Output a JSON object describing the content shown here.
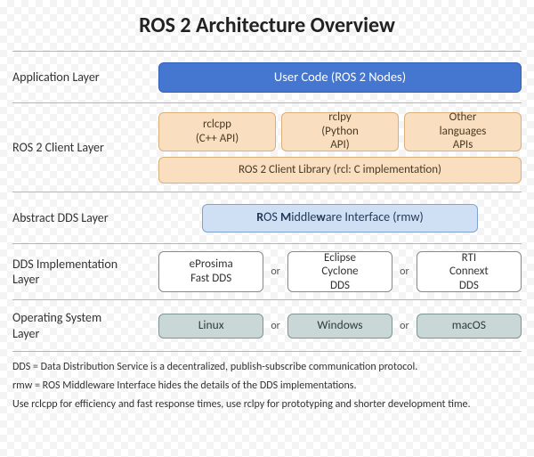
{
  "title": "ROS 2 Architecture Overview",
  "layers": {
    "app": {
      "label": "Application Layer",
      "user_code": "User Code (ROS 2 Nodes)"
    },
    "client": {
      "label": "ROS 2 Client Layer",
      "rclcpp_l1": "rclcpp",
      "rclcpp_l2": "(C++ API)",
      "rclpy_l1": "rclpy",
      "rclpy_l2": "(Python",
      "rclpy_l3": "API)",
      "other_l1": "Other",
      "other_l2": "languages",
      "other_l3": "APIs",
      "rcl": "ROS 2 Client Library (rcl: C implementation)"
    },
    "abstract": {
      "label": "Abstract DDS Layer",
      "rmw_R": "R",
      "rmw_t1": "OS ",
      "rmw_M": "M",
      "rmw_t2": "iddle",
      "rmw_w": "w",
      "rmw_t3": "are Interface (rmw)"
    },
    "dds": {
      "label_l1": "DDS Implementation",
      "label_l2": "Layer",
      "sep": "or",
      "eprosima_l1": "eProsima",
      "eprosima_l2": "Fast DDS",
      "cyclone_l1": "Eclipse",
      "cyclone_l2": "Cyclone",
      "cyclone_l3": "DDS",
      "rti_l1": "RTI",
      "rti_l2": "Connext",
      "rti_l3": "DDS"
    },
    "os": {
      "label_l1": "Operating System",
      "label_l2": "Layer",
      "sep": "or",
      "linux": "Linux",
      "windows": "Windows",
      "macos": "macOS"
    }
  },
  "footnotes": {
    "f1": "DDS = Data Distribution Service is a decentralized, publish-subscribe communication protocol.",
    "f2": "rmw = ROS Middleware Interface hides the details of the DDS implementations.",
    "f3": "Use rclcpp for efficiency and fast response times, use rclpy for prototyping and shorter development time."
  },
  "colors": {
    "user_bg": "#4576d0",
    "client_bg": "#f9dec0",
    "rmw_bg": "#cfe0f4",
    "dds_bg": "#ffffff",
    "os_bg": "#c9d7d7",
    "rule": "#b5b5b5"
  }
}
